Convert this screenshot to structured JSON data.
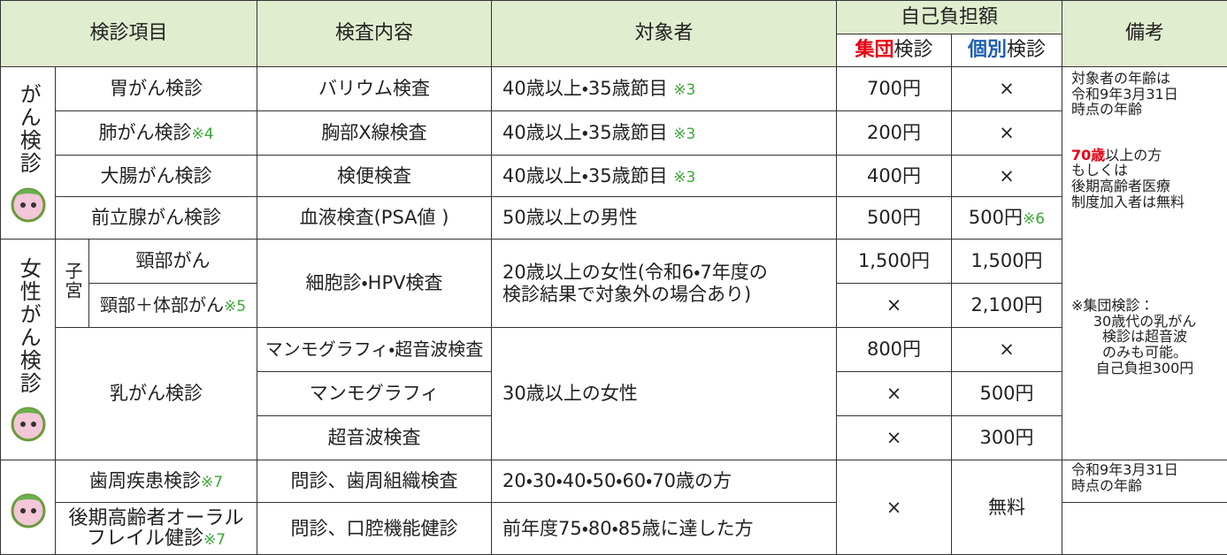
{
  "header": {
    "item": "検診項目",
    "content": "検査内容",
    "target": "対象者",
    "cost": "自己負担額",
    "group": {
      "emph": "集団",
      "rest": "検診"
    },
    "individual": {
      "emph": "個別",
      "rest": "検診"
    },
    "notes": "備考"
  },
  "groups": [
    "がん検診",
    "女性がん検診"
  ],
  "uterus": "子宮",
  "rows": [
    {
      "item": "胃がん検診",
      "content": "バリウム検査",
      "target": "40歳以上・35歳節目",
      "target_note": "※3",
      "group": "700円",
      "individual": "×"
    },
    {
      "item": "肺がん検診",
      "item_note": "※4",
      "content": "胸部X線検査",
      "target": "40歳以上・35歳節目",
      "target_note": "※3",
      "group": "200円",
      "individual": "×"
    },
    {
      "item": "大腸がん検診",
      "content": "検便検査",
      "target": "40歳以上・35歳節目",
      "target_note": "※3",
      "group": "400円",
      "individual": "×"
    },
    {
      "item": "前立腺がん検診",
      "content": "血液検査(PSA値 )",
      "target": "50歳以上の男性",
      "group": "500円",
      "individual": "500円",
      "individual_note": "※6"
    },
    {
      "item": "頸部がん",
      "content": "細胞診・HPV検査",
      "target": [
        "20歳以上の女性(令和6・7年度の",
        "検診結果で対象外の場合あり)"
      ],
      "group": "1,500円",
      "individual": "1,500円"
    },
    {
      "item": "頸部＋体部がん",
      "item_note": "※5",
      "group": "×",
      "individual": "2,100円"
    },
    {
      "item": "乳がん検診",
      "content": "マンモグラフィ・超音波検査",
      "target": "30歳以上の女性",
      "group": "800円",
      "individual": "×"
    },
    {
      "content": "マンモグラフィ",
      "group": "×",
      "individual": "500円"
    },
    {
      "content": "超音波検査",
      "group": "×",
      "individual": "300円"
    },
    {
      "item": "歯周疾患検診",
      "item_note": "※7",
      "content": "問診、歯周組織検査",
      "target": "20・30・40・50・60・70歳の方",
      "group": "×",
      "individual": "無料",
      "note": [
        "令和9年3月31日",
        "時点の年齢"
      ]
    },
    {
      "item": [
        "後期高齢者オーラル",
        "フレイル健診"
      ],
      "item_note": "※7",
      "content": "問診、口腔機能健診",
      "target": "前年度75・80・85歳に達した方"
    }
  ],
  "notes": {
    "age": [
      "対象者の年齢は",
      "令和9年3月31日",
      "時点の年齢"
    ],
    "free": {
      "emph": "70歳",
      "lines": [
        "以上の方",
        "もしくは",
        "後期高齢者医療",
        "制度加入者は無料"
      ]
    },
    "breast": [
      "※集団検診：",
      "30歳代の乳がん",
      "検診は超音波",
      "のみも可能。",
      "自己負担300円"
    ]
  }
}
